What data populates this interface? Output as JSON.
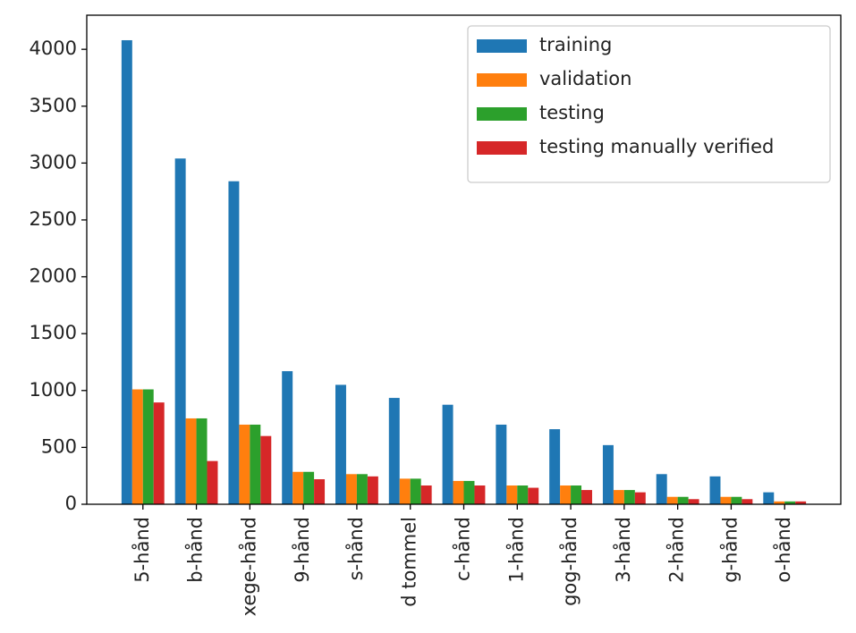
{
  "chart_data": {
    "type": "bar",
    "categories": [
      "5-hånd",
      "b-hånd",
      "xege-hånd",
      "9-hånd",
      "s-hånd",
      "d tommel",
      "c-hånd",
      "1-hånd",
      "gog-hånd",
      "3-hånd",
      "2-hånd",
      "g-hånd",
      "o-hånd"
    ],
    "series": [
      {
        "name": "training",
        "color": "#1f77b4",
        "values": [
          4080,
          3040,
          2840,
          1170,
          1050,
          935,
          875,
          700,
          660,
          520,
          265,
          245,
          105
        ]
      },
      {
        "name": "validation",
        "color": "#ff7f0e",
        "values": [
          1010,
          755,
          700,
          285,
          265,
          225,
          205,
          165,
          165,
          125,
          65,
          65,
          25
        ]
      },
      {
        "name": "testing",
        "color": "#2ca02c",
        "values": [
          1010,
          755,
          700,
          285,
          265,
          225,
          205,
          165,
          165,
          125,
          65,
          65,
          25
        ]
      },
      {
        "name": "testing manually verified",
        "color": "#d62728",
        "values": [
          895,
          380,
          600,
          220,
          245,
          165,
          165,
          145,
          125,
          105,
          45,
          45,
          25
        ]
      }
    ],
    "ylim": [
      0,
      4300
    ],
    "yticks": [
      0,
      500,
      1000,
      1500,
      2000,
      2500,
      3000,
      3500,
      4000
    ],
    "legend": "upper right"
  }
}
